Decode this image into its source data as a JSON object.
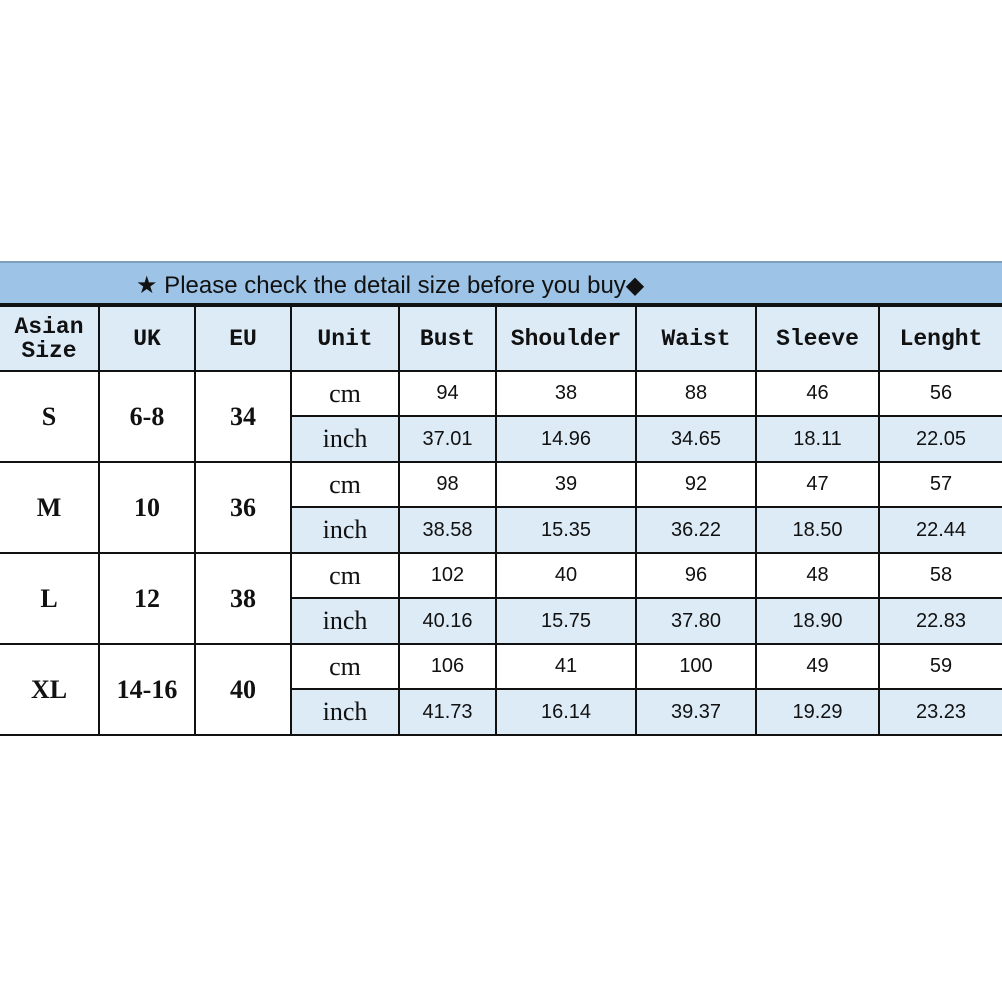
{
  "title": "★ Please check the detail size before you buy◆",
  "headers": [
    "Asian Size",
    "UK",
    "EU",
    "Unit",
    "Bust",
    "Shoulder",
    "Waist",
    "Sleeve",
    "Lenght"
  ],
  "colors": {
    "title_bg": "#9dc3e6",
    "header_bg": "#ddebf7",
    "inch_row_bg": "#ddebf7"
  },
  "rows": [
    {
      "size": "S",
      "uk": "6-8",
      "eu": "34",
      "cm_label": "cm",
      "inch_label": "inch",
      "cm": [
        "94",
        "38",
        "88",
        "46",
        "56"
      ],
      "inch": [
        "37.01",
        "14.96",
        "34.65",
        "18.11",
        "22.05"
      ]
    },
    {
      "size": "M",
      "uk": "10",
      "eu": "36",
      "cm_label": "cm",
      "inch_label": "inch",
      "cm": [
        "98",
        "39",
        "92",
        "47",
        "57"
      ],
      "inch": [
        "38.58",
        "15.35",
        "36.22",
        "18.50",
        "22.44"
      ]
    },
    {
      "size": "L",
      "uk": "12",
      "eu": "38",
      "cm_label": "cm",
      "inch_label": "inch",
      "cm": [
        "102",
        "40",
        "96",
        "48",
        "58"
      ],
      "inch": [
        "40.16",
        "15.75",
        "37.80",
        "18.90",
        "22.83"
      ]
    },
    {
      "size": "XL",
      "uk": "14-16",
      "eu": "40",
      "cm_label": "cm",
      "inch_label": "inch",
      "cm": [
        "106",
        "41",
        "100",
        "49",
        "59"
      ],
      "inch": [
        "41.73",
        "16.14",
        "39.37",
        "19.29",
        "23.23"
      ]
    }
  ]
}
